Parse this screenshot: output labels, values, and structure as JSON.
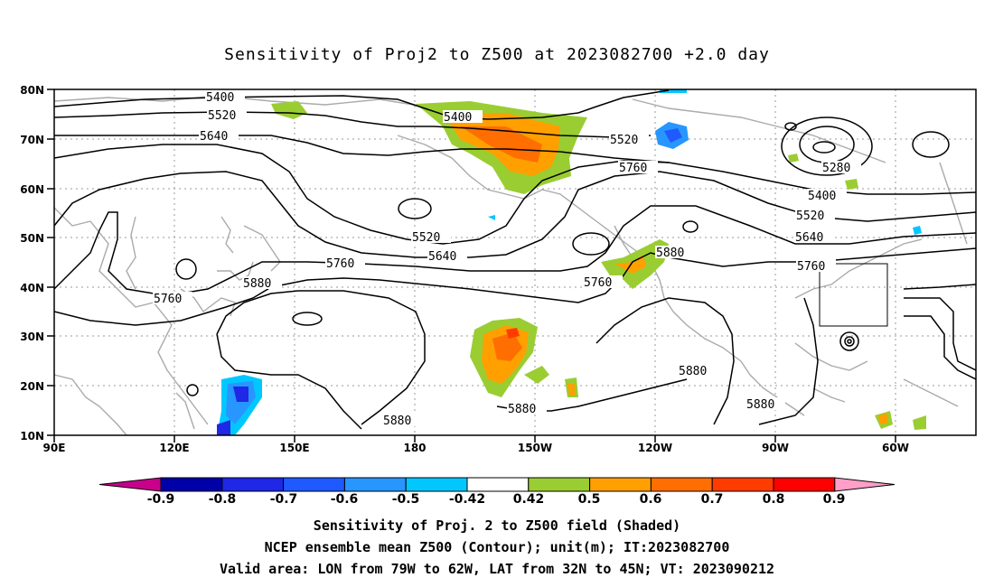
{
  "title": "Sensitivity of Proj2 to Z500 at 2023082700 +2.0 day",
  "axes": {
    "lat_labels": [
      "80N",
      "70N",
      "60N",
      "50N",
      "40N",
      "30N",
      "20N",
      "10N"
    ],
    "lon_labels": [
      "90E",
      "120E",
      "150E",
      "180",
      "150W",
      "120W",
      "90W",
      "60W"
    ]
  },
  "contour_labels": [
    "5400",
    "5520",
    "5640",
    "5400",
    "5520",
    "5760",
    "5280",
    "5400",
    "5520",
    "5640",
    "5760",
    "5520",
    "5640",
    "5760",
    "5880",
    "5760",
    "5880",
    "5760",
    "5880",
    "5880",
    "5880",
    "5880"
  ],
  "colorbar": {
    "labels": [
      "-0.9",
      "-0.8",
      "-0.7",
      "-0.6",
      "-0.5",
      "-0.42",
      "0.42",
      "0.5",
      "0.6",
      "0.7",
      "0.8",
      "0.9"
    ],
    "colors": [
      "#0000a8",
      "#1e28e6",
      "#1e5aff",
      "#2896ff",
      "#00c8ff",
      "#ffffff",
      "#9acd32",
      "#ffa000",
      "#ff6e00",
      "#ff3c00",
      "#ff0000"
    ],
    "end_colors": [
      "#c8008c",
      "#ff9ec8"
    ]
  },
  "caption": [
    "Sensitivity of Proj. 2 to Z500 field (Shaded)",
    "NCEP ensemble mean Z500 (Contour); unit(m); IT:2023082700",
    "Valid area: LON from 79W to 62W, LAT from 32N to 45N; VT: 2023090212"
  ]
}
